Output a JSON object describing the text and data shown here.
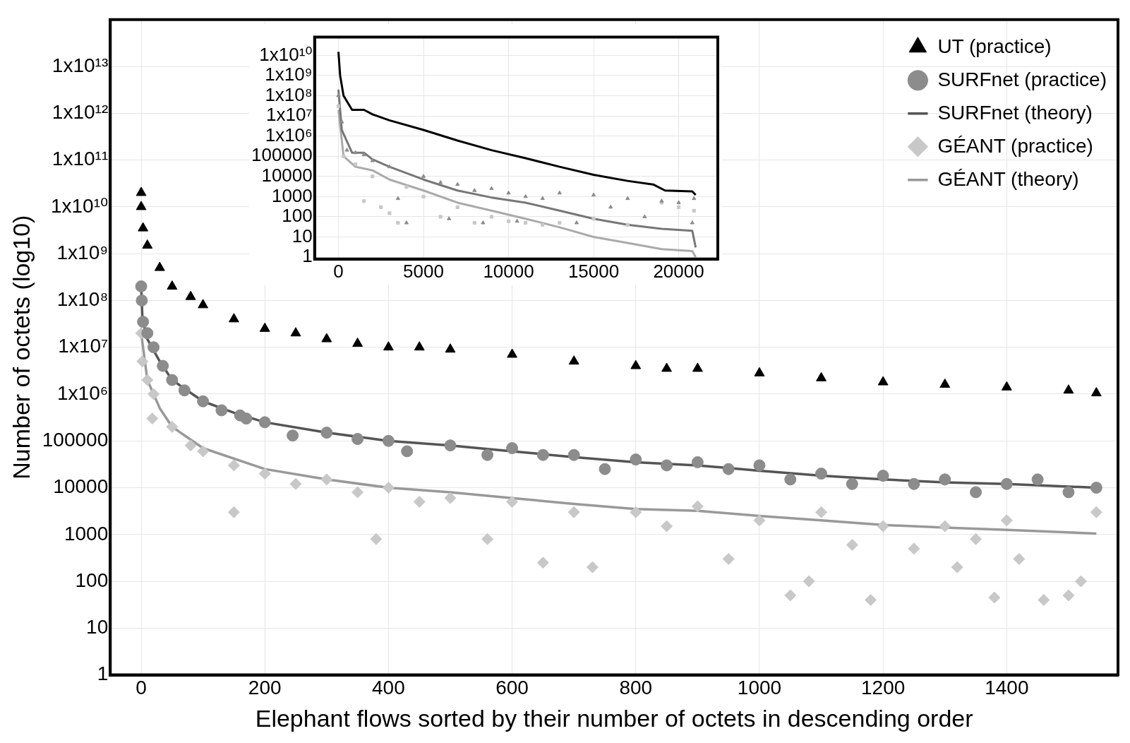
{
  "chart_data": [
    {
      "type": "scatter",
      "xlabel": "Elephant flows sorted by their number of octets in descending order",
      "ylabel": "Number of octets (log10)",
      "log": "y",
      "grid": true,
      "legend": "top right",
      "xlim": [
        -50,
        1580
      ],
      "xticks": [
        0,
        200,
        400,
        600,
        800,
        1000,
        1200,
        1400
      ],
      "ylim": [
        1,
        100000000000000
      ],
      "yticks": [
        1,
        10,
        100,
        1000,
        10000,
        100000,
        {
          "value": 1000000,
          "label": "1x10⁶"
        },
        {
          "value": 10000000,
          "label": "1x10⁷"
        },
        {
          "value": 100000000,
          "label": "1x10⁸"
        },
        {
          "value": 1000000000,
          "label": "1x10⁹"
        },
        {
          "value": 10000000000,
          "label": "1x10¹⁰"
        },
        {
          "value": 100000000000,
          "label": "1x10¹¹"
        },
        {
          "value": 1000000000000,
          "label": "1x10¹²"
        },
        {
          "value": 10000000000000,
          "label": "1x10¹³"
        }
      ],
      "series": [
        {
          "name": "UT (practice)",
          "type": "scatter",
          "marker": "triangle",
          "color": "#000000",
          "x": [
            0,
            0,
            3,
            10,
            30,
            50,
            80,
            100,
            150,
            200,
            250,
            300,
            350,
            400,
            450,
            500,
            600,
            700,
            800,
            850,
            900,
            1000,
            1100,
            1200,
            1300,
            1400,
            1500,
            1545
          ],
          "values": [
            20000000000,
            10000000000,
            3500000000,
            1500000000,
            500000000,
            200000000,
            120000000,
            80000000,
            40000000,
            25000000,
            20000000,
            15000000,
            12000000,
            10000000,
            10000000,
            9000000,
            7000000,
            5000000,
            4000000,
            3500000,
            3500000,
            2800000,
            2200000,
            1800000,
            1600000,
            1400000,
            1200000,
            1050000
          ]
        },
        {
          "name": "SURFnet (practice)",
          "type": "scatter",
          "marker": "circle",
          "color": "#8c8c8c",
          "x": [
            0,
            1,
            3,
            10,
            20,
            35,
            50,
            70,
            100,
            130,
            160,
            170,
            200,
            245,
            300,
            350,
            400,
            430,
            500,
            560,
            600,
            650,
            700,
            750,
            800,
            850,
            900,
            950,
            1000,
            1050,
            1100,
            1150,
            1200,
            1250,
            1300,
            1350,
            1400,
            1450,
            1500,
            1545
          ],
          "values": [
            200000000,
            100000000,
            35000000,
            20000000,
            10000000,
            4000000,
            2000000,
            1200000,
            700000,
            450000,
            350000,
            300000,
            250000,
            130000,
            150000,
            110000,
            100000,
            60000,
            80000,
            50000,
            70000,
            50000,
            50000,
            25000,
            40000,
            30000,
            35000,
            25000,
            30000,
            15000,
            20000,
            12000,
            18000,
            12000,
            15000,
            8000,
            12000,
            15000,
            8000,
            10000
          ]
        },
        {
          "name": "SURFnet (theory)",
          "type": "line",
          "line_style": "solid",
          "marker": "none",
          "color": "#555555",
          "x": [
            0,
            2,
            10,
            30,
            50,
            100,
            150,
            200,
            300,
            400,
            500,
            600,
            700,
            800,
            900,
            1000,
            1100,
            1200,
            1300,
            1400,
            1545
          ],
          "values": [
            200000000,
            40000000,
            15000000,
            5000000,
            2000000,
            700000,
            400000,
            250000,
            150000,
            100000,
            80000,
            60000,
            45000,
            35000,
            30000,
            23000,
            18000,
            15000,
            13000,
            12000,
            10000
          ]
        },
        {
          "name": "GÉANT (practice)",
          "type": "scatter",
          "marker": "diamond",
          "color": "#c8c8c8",
          "x": [
            0,
            2,
            10,
            18,
            20,
            50,
            80,
            100,
            150,
            150,
            200,
            250,
            300,
            350,
            380,
            400,
            450,
            500,
            560,
            600,
            650,
            700,
            730,
            800,
            850,
            900,
            950,
            1000,
            1050,
            1080,
            1100,
            1150,
            1180,
            1200,
            1250,
            1300,
            1320,
            1350,
            1380,
            1400,
            1420,
            1460,
            1500,
            1520,
            1545
          ],
          "values": [
            20000000,
            5000000,
            2000000,
            300000,
            1000000,
            200000,
            80000,
            60000,
            3000,
            30000,
            20000,
            12000,
            15000,
            8000,
            800,
            10000,
            5000,
            6000,
            800,
            5000,
            250,
            3000,
            200,
            3000,
            1500,
            4000,
            300,
            2000,
            50,
            100,
            3000,
            600,
            40,
            1500,
            500,
            1500,
            200,
            800,
            45,
            2000,
            300,
            40,
            50,
            100,
            3000
          ]
        },
        {
          "name": "GÉANT (theory)",
          "type": "line",
          "line_style": "solid",
          "marker": "none",
          "color": "#999999",
          "x": [
            0,
            10,
            30,
            50,
            100,
            200,
            300,
            400,
            500,
            600,
            700,
            800,
            900,
            1000,
            1100,
            1200,
            1300,
            1400,
            1545
          ],
          "values": [
            20000000,
            2000000,
            500000,
            200000,
            70000,
            25000,
            15000,
            10000,
            8000,
            6000,
            4500,
            3500,
            3200,
            2500,
            2000,
            1600,
            1400,
            1250,
            1050
          ]
        }
      ]
    },
    {
      "type": "scatter",
      "log": "y",
      "grid": true,
      "xlim": [
        -1400,
        22300
      ],
      "xticks": [
        0,
        5000,
        10000,
        15000,
        20000
      ],
      "ylim": [
        0.8,
        80000000000
      ],
      "yticks": [
        1,
        10,
        100,
        1000,
        10000,
        100000,
        {
          "value": 1000000,
          "label": "1x10⁶"
        },
        {
          "value": 10000000,
          "label": "1x10⁷"
        },
        {
          "value": 100000000,
          "label": "1x10⁸"
        },
        {
          "value": 1000000000,
          "label": "1x10⁹"
        },
        {
          "value": 10000000000,
          "label": "1x10¹⁰"
        }
      ],
      "series": [
        {
          "type": "scatter",
          "marker": "triangle",
          "color": "#8c8c8c",
          "x": [
            0,
            200,
            500,
            1000,
            1500,
            2000,
            3000,
            3500,
            4000,
            5000,
            6000,
            6500,
            7000,
            8000,
            8500,
            9000,
            10000,
            10500,
            11000,
            12000,
            13000,
            14000,
            15000,
            16000,
            17000,
            18000,
            19000,
            20000,
            20800,
            20900
          ],
          "values": [
            100000000,
            5000000,
            200000,
            150000,
            120000,
            60000,
            30000,
            800,
            50,
            10000,
            5000,
            80,
            4000,
            2000,
            50,
            2500,
            1500,
            60,
            1000,
            800,
            1500,
            50,
            1200,
            300,
            800,
            100,
            600,
            500,
            50,
            800
          ]
        },
        {
          "type": "scatter",
          "marker": "square",
          "color": "#c8c8c8",
          "x": [
            0,
            300,
            1000,
            1500,
            2000,
            2500,
            3000,
            3500,
            4000,
            5000,
            6000,
            7000,
            8000,
            9000,
            10000,
            11000,
            12000,
            13000,
            15000,
            17000,
            19000,
            20000,
            20900
          ],
          "values": [
            30000000,
            100000,
            40000,
            600,
            10000,
            300,
            150,
            50,
            3000,
            1000,
            100,
            300,
            50,
            100,
            60,
            50,
            40,
            50,
            80,
            40,
            500,
            300,
            200
          ]
        },
        {
          "type": "line",
          "line_style": "solid",
          "marker": "none",
          "color": "#000000",
          "x": [
            0,
            100,
            300,
            800,
            1500,
            2000,
            3000,
            5000,
            7000,
            9000,
            11000,
            13000,
            15000,
            17000,
            18500,
            19200,
            20800,
            21000
          ],
          "values": [
            15000000000,
            1000000000,
            100000000,
            20000000,
            20000000,
            12000000,
            6000000,
            2000000,
            600000,
            200000,
            80000,
            30000,
            12000,
            6000,
            4000,
            2000,
            1800,
            1200
          ]
        },
        {
          "type": "line",
          "line_style": "solid",
          "marker": "none",
          "color": "#777777",
          "x": [
            0,
            200,
            800,
            1500,
            2000,
            3000,
            5000,
            7000,
            9000,
            11000,
            13000,
            15000,
            17000,
            19000,
            20800,
            21000
          ],
          "values": [
            200000000,
            2000000,
            150000,
            150000,
            70000,
            30000,
            7000,
            2000,
            900,
            500,
            200,
            80,
            40,
            25,
            20,
            3
          ]
        },
        {
          "type": "line",
          "line_style": "solid",
          "marker": "none",
          "color": "#aaaaaa",
          "x": [
            0,
            300,
            1000,
            2000,
            3000,
            5000,
            7000,
            9000,
            11000,
            13000,
            15000,
            17000,
            19000,
            20800,
            21000
          ],
          "values": [
            20000000,
            100000,
            30000,
            20000,
            7000,
            2000,
            500,
            200,
            80,
            30,
            10,
            5,
            2.5,
            2,
            1
          ]
        }
      ]
    }
  ]
}
